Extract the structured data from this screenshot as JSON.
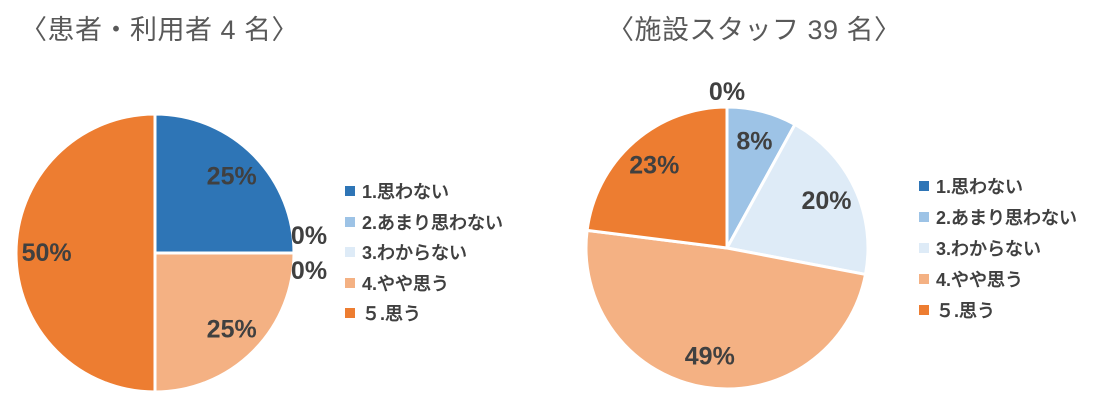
{
  "page": {
    "background": "#ffffff",
    "title_color": "#595959",
    "label_color": "#404040"
  },
  "chart_data": [
    {
      "type": "pie",
      "title": "〈患者・利用者 4 名〉",
      "categories": [
        "1.思わない",
        "2.あまり思わない",
        "3.わからない",
        "4.やや思う",
        "５.思う"
      ],
      "values": [
        25,
        0,
        0,
        25,
        50
      ],
      "unit": "%",
      "data_labels": [
        "25%",
        "0%",
        "0%",
        "25%",
        "50%"
      ],
      "colors": [
        "#2E75B6",
        "#9DC3E6",
        "#DEEBF7",
        "#F4B183",
        "#ED7D31"
      ],
      "legend_position": "right",
      "start_angle_deg": 0,
      "direction": "clockwise"
    },
    {
      "type": "pie",
      "title": "〈施設スタッフ 39 名〉",
      "categories": [
        "1.思わない",
        "2.あまり思わない",
        "3.わからない",
        "4.やや思う",
        "５.思う"
      ],
      "values": [
        0,
        8,
        20,
        49,
        23
      ],
      "unit": "%",
      "data_labels": [
        "0%",
        "8%",
        "20%",
        "49%",
        "23%"
      ],
      "colors": [
        "#2E75B6",
        "#9DC3E6",
        "#DEEBF7",
        "#F4B183",
        "#ED7D31"
      ],
      "legend_position": "right",
      "start_angle_deg": 0,
      "direction": "clockwise"
    }
  ]
}
